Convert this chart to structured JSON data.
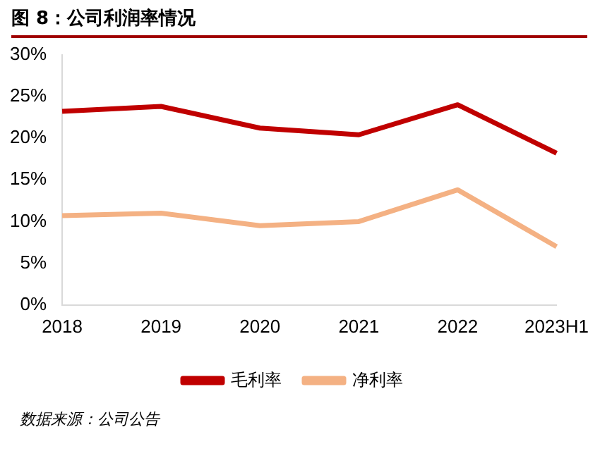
{
  "chart_data": {
    "type": "line",
    "title": "图 8：公司利润率情况",
    "categories": [
      "2018",
      "2019",
      "2020",
      "2021",
      "2022",
      "2023H1"
    ],
    "series": [
      {
        "name": "毛利率",
        "color": "#c00000",
        "values": [
          23.2,
          23.8,
          21.2,
          20.4,
          24.0,
          18.2
        ]
      },
      {
        "name": "净利率",
        "color": "#f4b183",
        "values": [
          10.7,
          11.0,
          9.5,
          10.0,
          13.8,
          7.0
        ]
      }
    ],
    "ylim": [
      0,
      30
    ],
    "yticks": [
      {
        "value": 0,
        "label": "0%"
      },
      {
        "value": 5,
        "label": "5%"
      },
      {
        "value": 10,
        "label": "10%"
      },
      {
        "value": 15,
        "label": "15%"
      },
      {
        "value": 20,
        "label": "20%"
      },
      {
        "value": 25,
        "label": "25%"
      },
      {
        "value": 30,
        "label": "30%"
      }
    ],
    "grid": false,
    "legend": "bottom",
    "marker": "none",
    "line_style": "solid",
    "annotations": [
      "数据来源：公司公告"
    ]
  }
}
